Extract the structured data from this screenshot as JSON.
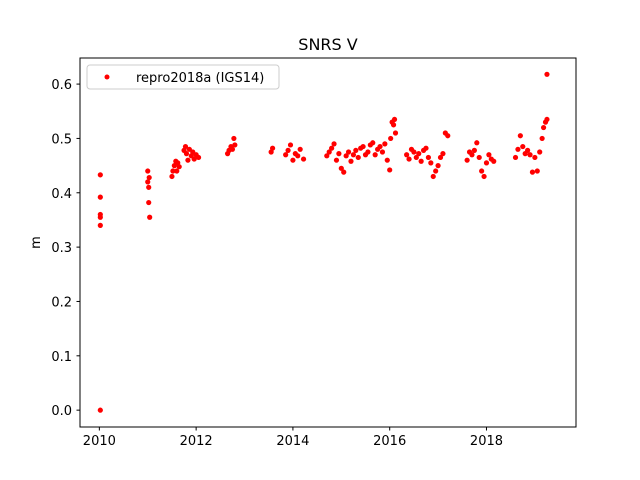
{
  "chart_data": {
    "type": "scatter",
    "title": "SNRS V",
    "xlabel": "",
    "ylabel": "m",
    "xlim": [
      2009.6,
      2019.85
    ],
    "ylim": [
      -0.031,
      0.648
    ],
    "xticks": [
      2010,
      2012,
      2014,
      2016,
      2018
    ],
    "yticks": [
      0.0,
      0.1,
      0.2,
      0.3,
      0.4,
      0.5,
      0.6
    ],
    "ytick_labels": [
      "0.0",
      "0.1",
      "0.2",
      "0.3",
      "0.4",
      "0.5",
      "0.6"
    ],
    "grid": false,
    "legend_position": "upper-left",
    "series": [
      {
        "name": "repro2018a (IGS14)",
        "color": "#ff0000",
        "marker": "circle",
        "x": [
          2010.02,
          2010.02,
          2010.02,
          2010.02,
          2010.02,
          2010.02,
          2011.0,
          2011.0,
          2011.02,
          2011.02,
          2011.03,
          2011.04,
          2011.5,
          2011.52,
          2011.55,
          2011.58,
          2011.6,
          2011.62,
          2011.65,
          2011.75,
          2011.78,
          2011.8,
          2011.83,
          2011.86,
          2011.9,
          2011.93,
          2011.96,
          2012.0,
          2012.05,
          2012.65,
          2012.68,
          2012.72,
          2012.75,
          2012.78,
          2012.8,
          2013.55,
          2013.58,
          2013.85,
          2013.9,
          2013.95,
          2014.0,
          2014.05,
          2014.1,
          2014.15,
          2014.22,
          2014.7,
          2014.75,
          2014.8,
          2014.85,
          2014.9,
          2014.95,
          2015.0,
          2015.05,
          2015.1,
          2015.15,
          2015.2,
          2015.25,
          2015.3,
          2015.35,
          2015.4,
          2015.45,
          2015.5,
          2015.55,
          2015.6,
          2015.65,
          2015.7,
          2015.75,
          2015.8,
          2015.85,
          2015.9,
          2015.95,
          2016.0,
          2016.02,
          2016.05,
          2016.08,
          2016.1,
          2016.12,
          2016.35,
          2016.4,
          2016.45,
          2016.5,
          2016.55,
          2016.6,
          2016.65,
          2016.7,
          2016.75,
          2016.8,
          2016.85,
          2016.9,
          2016.95,
          2017.0,
          2017.05,
          2017.1,
          2017.15,
          2017.2,
          2017.6,
          2017.65,
          2017.7,
          2017.75,
          2017.8,
          2017.85,
          2017.9,
          2017.95,
          2018.0,
          2018.05,
          2018.1,
          2018.15,
          2018.6,
          2018.65,
          2018.7,
          2018.75,
          2018.8,
          2018.85,
          2018.9,
          2018.95,
          2019.0,
          2019.05,
          2019.1,
          2019.15,
          2019.18,
          2019.22,
          2019.25,
          2019.25
        ],
        "y": [
          0.433,
          0.392,
          0.36,
          0.355,
          0.34,
          0.0,
          0.44,
          0.42,
          0.382,
          0.41,
          0.428,
          0.355,
          0.43,
          0.44,
          0.45,
          0.458,
          0.44,
          0.455,
          0.448,
          0.478,
          0.485,
          0.472,
          0.46,
          0.48,
          0.468,
          0.475,
          0.462,
          0.47,
          0.465,
          0.472,
          0.478,
          0.485,
          0.48,
          0.5,
          0.488,
          0.475,
          0.482,
          0.47,
          0.478,
          0.488,
          0.46,
          0.472,
          0.468,
          0.48,
          0.462,
          0.468,
          0.475,
          0.482,
          0.49,
          0.46,
          0.472,
          0.445,
          0.438,
          0.468,
          0.475,
          0.458,
          0.47,
          0.478,
          0.465,
          0.482,
          0.485,
          0.47,
          0.475,
          0.488,
          0.492,
          0.47,
          0.48,
          0.485,
          0.475,
          0.49,
          0.46,
          0.442,
          0.5,
          0.53,
          0.525,
          0.535,
          0.51,
          0.47,
          0.462,
          0.48,
          0.475,
          0.465,
          0.472,
          0.458,
          0.478,
          0.482,
          0.465,
          0.455,
          0.43,
          0.44,
          0.45,
          0.465,
          0.472,
          0.51,
          0.505,
          0.46,
          0.475,
          0.47,
          0.478,
          0.492,
          0.465,
          0.44,
          0.43,
          0.455,
          0.47,
          0.462,
          0.458,
          0.465,
          0.48,
          0.505,
          0.485,
          0.472,
          0.478,
          0.47,
          0.438,
          0.465,
          0.44,
          0.475,
          0.5,
          0.52,
          0.53,
          0.535,
          0.618
        ]
      }
    ]
  }
}
